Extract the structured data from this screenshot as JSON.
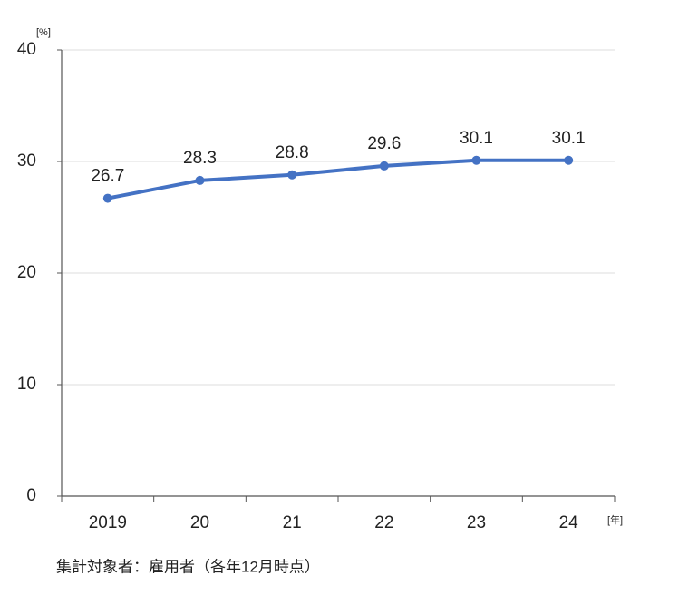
{
  "chart_data": {
    "type": "line",
    "y_unit": "[%]",
    "x_unit": "[年]",
    "note": "集計対象者：雇用者（各年12月時点）",
    "categories": [
      "2019",
      "20",
      "21",
      "22",
      "23",
      "24"
    ],
    "values": [
      26.7,
      28.3,
      28.8,
      29.6,
      30.1,
      30.1
    ],
    "color": "#4472c4",
    "ylim": [
      0,
      40
    ],
    "yticks": [
      0,
      10,
      20,
      30,
      40
    ],
    "grid": true
  }
}
